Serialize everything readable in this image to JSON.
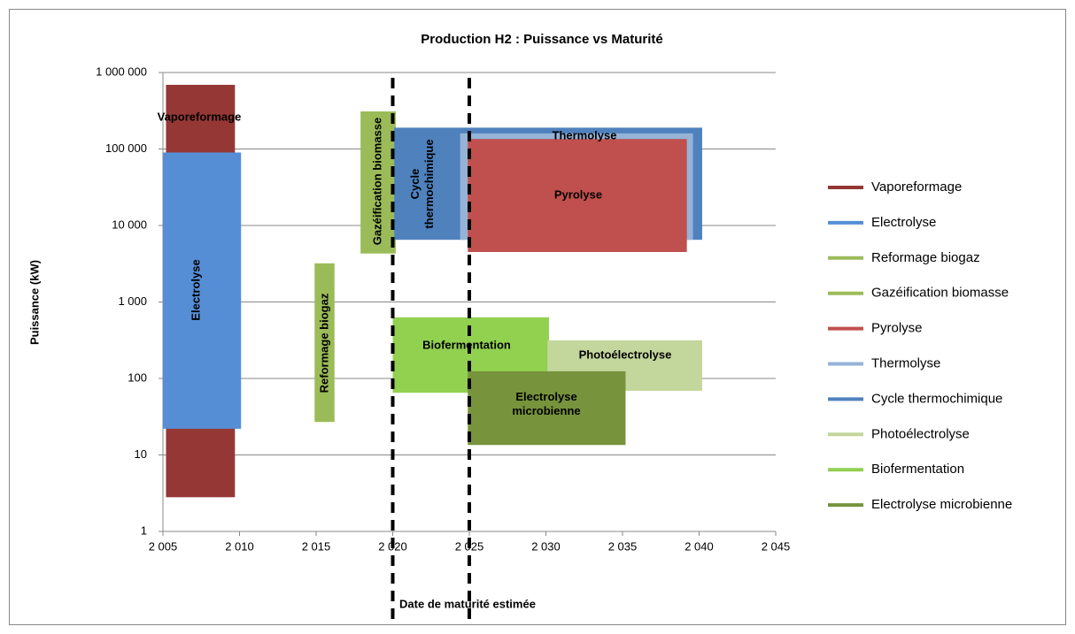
{
  "chart_data": {
    "type": "range",
    "title": "Production H2 : Puissance vs Maturité",
    "x_label": "Date de maturité estimée",
    "y_label": "Puissance (kW)",
    "log_y": true,
    "grid": true,
    "legend": "right",
    "xlim": [
      2005,
      2045
    ],
    "xticks": [
      {
        "value": 2005,
        "label": "2 005"
      },
      {
        "value": 2010,
        "label": "2 010"
      },
      {
        "value": 2015,
        "label": "2 015"
      },
      {
        "value": 2020,
        "label": "2 020"
      },
      {
        "value": 2025,
        "label": "2 025"
      },
      {
        "value": 2030,
        "label": "2 030"
      },
      {
        "value": 2035,
        "label": "2 035"
      },
      {
        "value": 2040,
        "label": "2 040"
      },
      {
        "value": 2045,
        "label": "2 045"
      }
    ],
    "ylim": [
      1,
      1000000
    ],
    "yticks": [
      1,
      10,
      100,
      {
        "value": 1000,
        "label": "1 000"
      },
      {
        "value": 10000,
        "label": "10 000"
      },
      {
        "value": 100000,
        "label": "100 000"
      },
      {
        "value": 1000000,
        "label": "1 000 000"
      }
    ],
    "vlines": [
      2020,
      2025
    ],
    "series": [
      {
        "name": "Vaporeformage",
        "color": "#953735",
        "x": [
          2005.2,
          2009.7
        ],
        "values": [
          2.8,
          690000
        ]
      },
      {
        "name": "Electrolyse",
        "color": "#558ed5",
        "x": [
          2005,
          2010.1
        ],
        "values": [
          22,
          90000
        ]
      },
      {
        "name": "Reformage biogaz",
        "color": "#9bbb59",
        "x": [
          2014.9,
          2016.2
        ],
        "values": [
          27,
          3200
        ]
      },
      {
        "name": "Gazéification biomasse",
        "color": "#9bbb59",
        "x": [
          2017.9,
          2020.2
        ],
        "values": [
          4300,
          310000
        ]
      },
      {
        "name": "Pyrolyse",
        "color": "#c0504d",
        "x": [
          2024.9,
          2039.2
        ],
        "values": [
          4500,
          135000
        ]
      },
      {
        "name": "Thermolyse",
        "color": "#95b3d7",
        "x": [
          2024.4,
          2039.6
        ],
        "values": [
          6500,
          160000
        ]
      },
      {
        "name": "Cycle thermochimique",
        "color": "#4f81bd",
        "x": [
          2020.1,
          2040.2
        ],
        "values": [
          6500,
          190000
        ]
      },
      {
        "name": "Photoélectrolyse",
        "color": "#c3d69b",
        "x": [
          2030.1,
          2040.2
        ],
        "values": [
          69,
          315
        ]
      },
      {
        "name": "Biofermentation",
        "color": "#92d050",
        "x": [
          2020,
          2030.2
        ],
        "values": [
          65,
          630
        ]
      },
      {
        "name": "Electrolyse microbienne",
        "color": "#77933c",
        "x": [
          2024.9,
          2035.2
        ],
        "values": [
          13.5,
          124
        ]
      }
    ]
  }
}
